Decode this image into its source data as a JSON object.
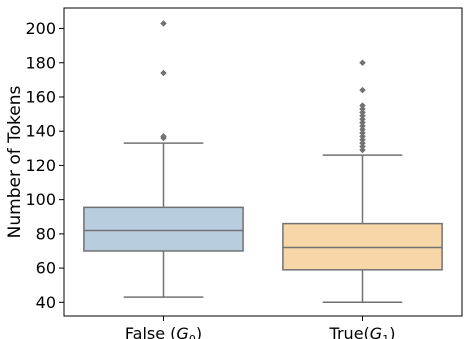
{
  "chart_data": {
    "type": "box",
    "ylabel": "Number of Tokens",
    "ylim": [
      32,
      212
    ],
    "yticks": [
      40,
      60,
      80,
      100,
      120,
      140,
      160,
      180,
      200
    ],
    "grid": false,
    "categories": [
      {
        "label": "False (",
        "sub_main": "G",
        "sub_idx": "0",
        "suffix": ")",
        "color": "#b8cde0"
      },
      {
        "label": "True(",
        "sub_main": "G",
        "sub_idx": "1",
        "suffix": ")",
        "color": "#f7d7a8"
      }
    ],
    "boxes": [
      {
        "whisker_low": 43,
        "q1": 70,
        "median": 82,
        "q3": 95.5,
        "whisker_high": 133,
        "outliers": [
          136,
          137,
          174,
          203
        ]
      },
      {
        "whisker_low": 40,
        "q1": 59,
        "median": 72,
        "q3": 86,
        "whisker_high": 126,
        "outliers": [
          129,
          131,
          133,
          135,
          137,
          139,
          141,
          143,
          145,
          147,
          149,
          151,
          153,
          155,
          164,
          180
        ]
      }
    ]
  }
}
